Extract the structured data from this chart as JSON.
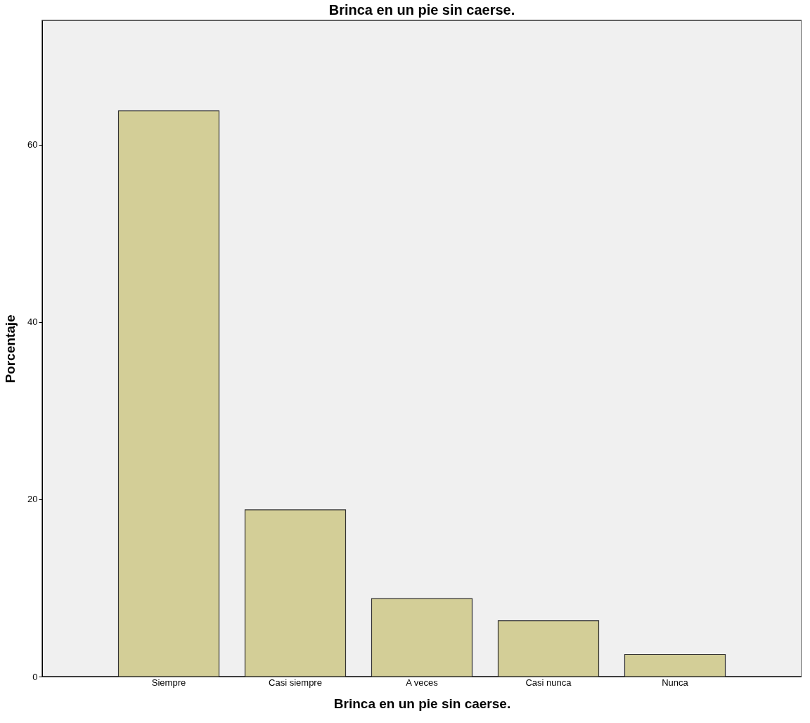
{
  "chart_data": {
    "type": "bar",
    "title": "Brinca en un pie sin caerse.",
    "xlabel": "Brinca en un pie sin caerse.",
    "ylabel": "Porcentaje",
    "categories": [
      "Siempre",
      "Casi siempre",
      "A veces",
      "Casi nunca",
      "Nunca"
    ],
    "values": [
      63.8,
      18.8,
      8.8,
      6.3,
      2.5
    ],
    "color": "#d3ce97",
    "ylim": [
      0,
      74
    ],
    "yticks": [
      0,
      20,
      40,
      60
    ],
    "grid": false
  }
}
